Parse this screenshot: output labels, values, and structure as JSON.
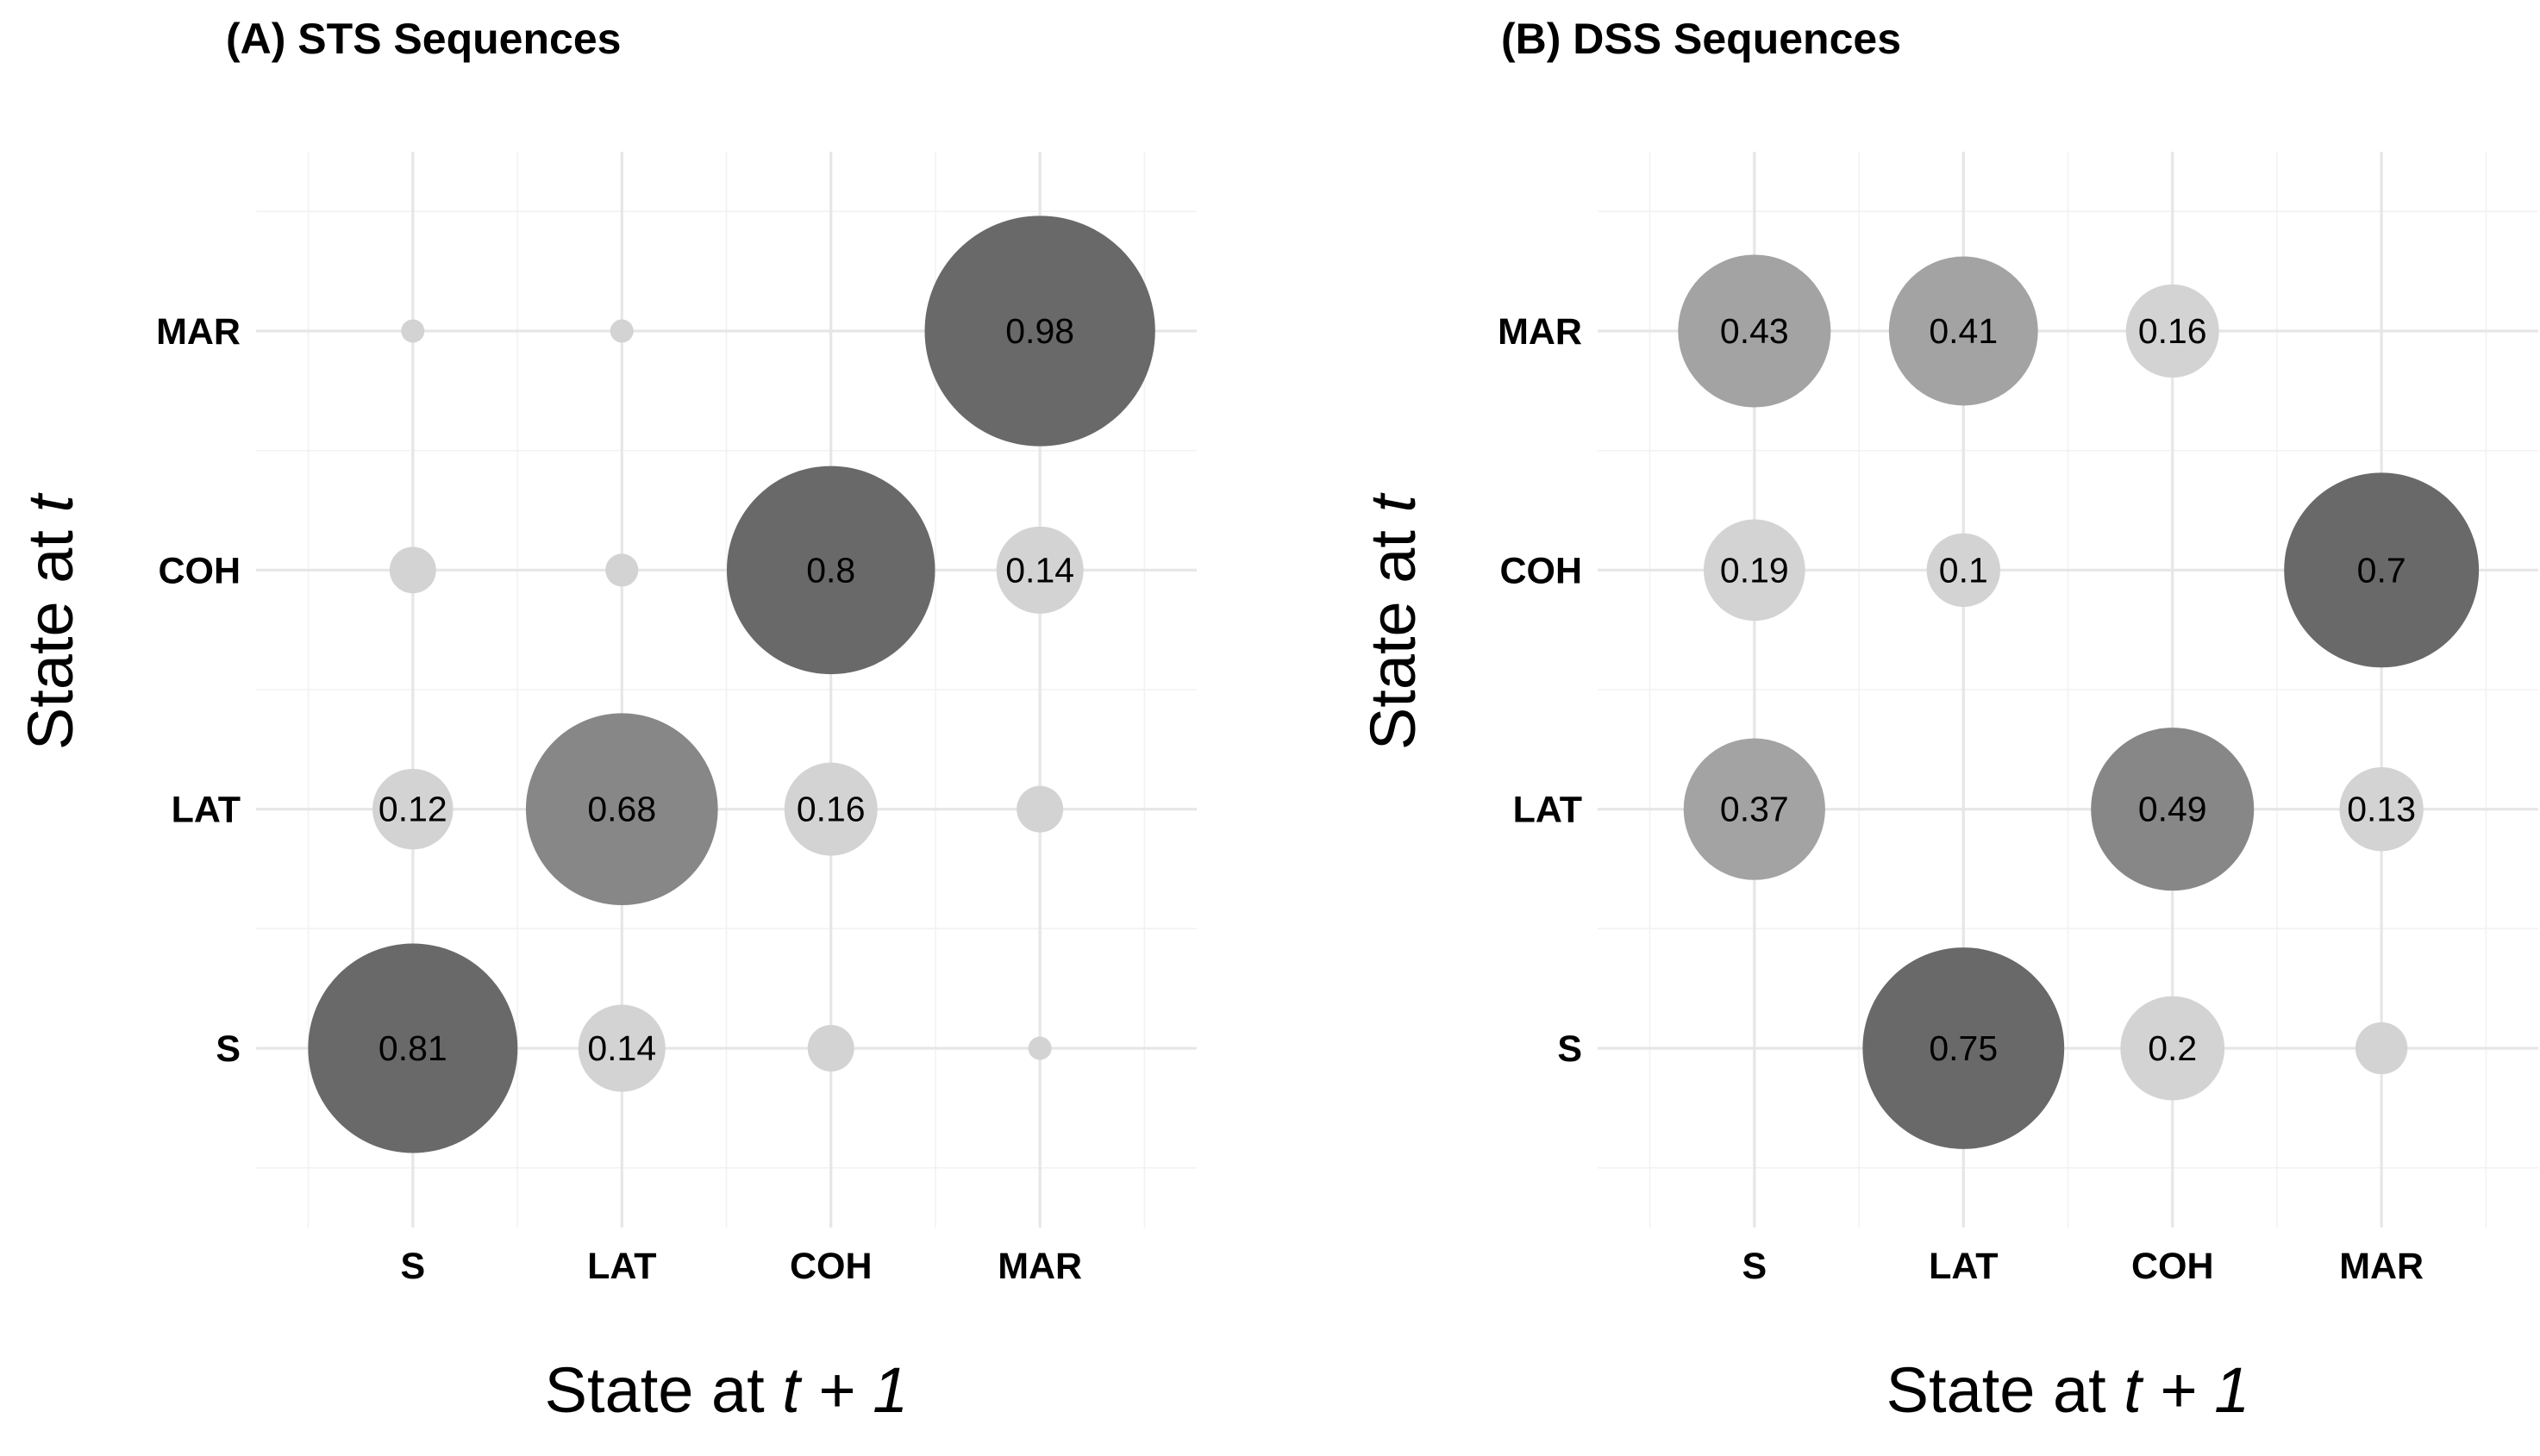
{
  "chart_data": [
    {
      "type": "scatter",
      "title": "(A) STS Sequences",
      "xlabel_prefix": "State at ",
      "xlabel_italic": "t + 1",
      "ylabel_prefix": "State at ",
      "ylabel_italic": "t",
      "x_categories": [
        "S",
        "LAT",
        "COH",
        "MAR"
      ],
      "y_categories": [
        "S",
        "LAT",
        "COH",
        "MAR"
      ],
      "grid": true,
      "legend": "none",
      "points": [
        {
          "x": "S",
          "y": "S",
          "value": 0.81,
          "label": "0.81"
        },
        {
          "x": "LAT",
          "y": "S",
          "value": 0.14,
          "label": "0.14"
        },
        {
          "x": "COH",
          "y": "S",
          "value": 0.04,
          "label": ""
        },
        {
          "x": "MAR",
          "y": "S",
          "value": 0.01,
          "label": ""
        },
        {
          "x": "S",
          "y": "LAT",
          "value": 0.12,
          "label": "0.12"
        },
        {
          "x": "LAT",
          "y": "LAT",
          "value": 0.68,
          "label": "0.68"
        },
        {
          "x": "COH",
          "y": "LAT",
          "value": 0.16,
          "label": "0.16"
        },
        {
          "x": "MAR",
          "y": "LAT",
          "value": 0.04,
          "label": ""
        },
        {
          "x": "S",
          "y": "COH",
          "value": 0.04,
          "label": ""
        },
        {
          "x": "LAT",
          "y": "COH",
          "value": 0.02,
          "label": ""
        },
        {
          "x": "COH",
          "y": "COH",
          "value": 0.8,
          "label": "0.8"
        },
        {
          "x": "MAR",
          "y": "COH",
          "value": 0.14,
          "label": "0.14"
        },
        {
          "x": "S",
          "y": "MAR",
          "value": 0.01,
          "label": ""
        },
        {
          "x": "LAT",
          "y": "MAR",
          "value": 0.01,
          "label": ""
        },
        {
          "x": "MAR",
          "y": "MAR",
          "value": 0.98,
          "label": "0.98"
        }
      ]
    },
    {
      "type": "scatter",
      "title": "(B) DSS Sequences",
      "xlabel_prefix": "State at ",
      "xlabel_italic": "t + 1",
      "ylabel_prefix": "State at ",
      "ylabel_italic": "t",
      "x_categories": [
        "S",
        "LAT",
        "COH",
        "MAR"
      ],
      "y_categories": [
        "S",
        "LAT",
        "COH",
        "MAR"
      ],
      "grid": true,
      "legend": "none",
      "points": [
        {
          "x": "LAT",
          "y": "S",
          "value": 0.75,
          "label": "0.75"
        },
        {
          "x": "COH",
          "y": "S",
          "value": 0.2,
          "label": "0.2"
        },
        {
          "x": "MAR",
          "y": "S",
          "value": 0.05,
          "label": ""
        },
        {
          "x": "S",
          "y": "LAT",
          "value": 0.37,
          "label": "0.37"
        },
        {
          "x": "COH",
          "y": "LAT",
          "value": 0.49,
          "label": "0.49"
        },
        {
          "x": "MAR",
          "y": "LAT",
          "value": 0.13,
          "label": "0.13"
        },
        {
          "x": "S",
          "y": "COH",
          "value": 0.19,
          "label": "0.19"
        },
        {
          "x": "LAT",
          "y": "COH",
          "value": 0.1,
          "label": "0.1"
        },
        {
          "x": "MAR",
          "y": "COH",
          "value": 0.7,
          "label": "0.7"
        },
        {
          "x": "S",
          "y": "MAR",
          "value": 0.43,
          "label": "0.43"
        },
        {
          "x": "LAT",
          "y": "MAR",
          "value": 0.41,
          "label": "0.41"
        },
        {
          "x": "COH",
          "y": "MAR",
          "value": 0.16,
          "label": "0.16"
        }
      ]
    }
  ]
}
